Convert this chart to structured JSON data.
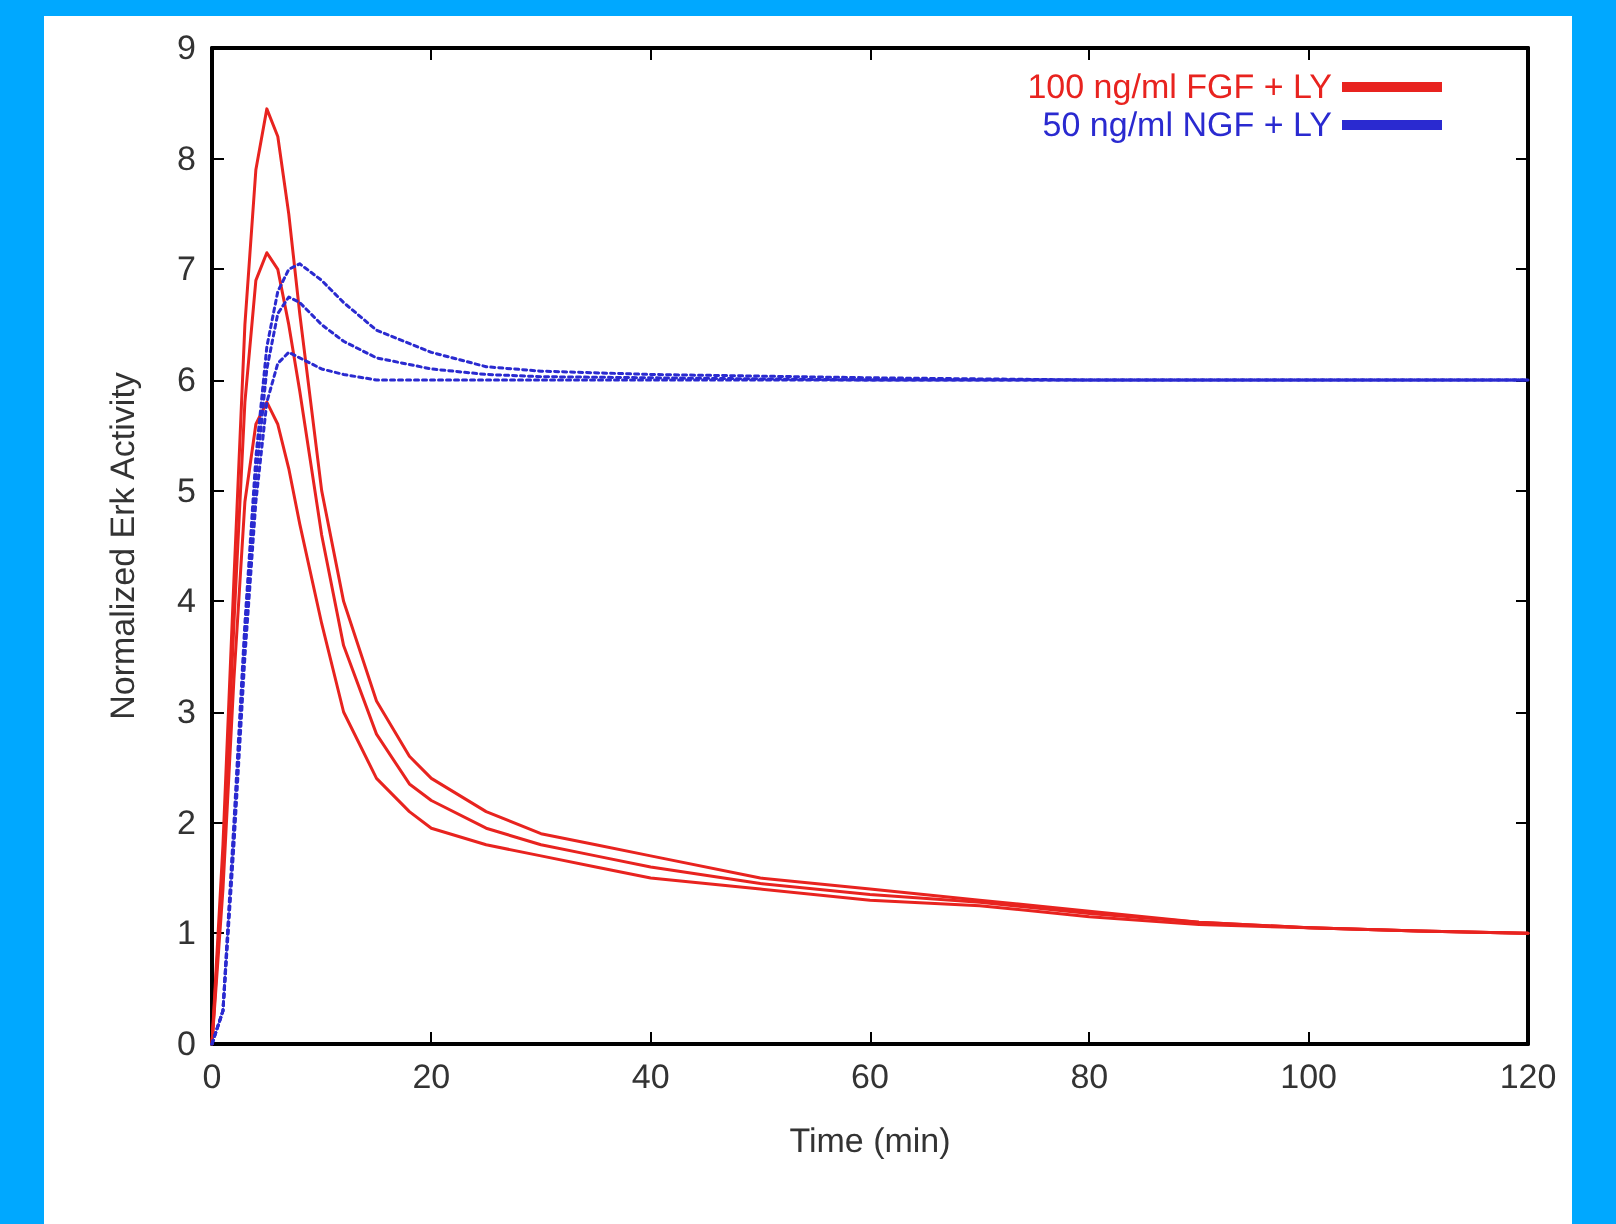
{
  "chart_data": {
    "type": "line",
    "xlabel": "Time (min)",
    "ylabel": "Normalized Erk Activity",
    "xlim": [
      0,
      120
    ],
    "xticks": [
      0,
      20,
      40,
      60,
      80,
      100,
      120
    ],
    "ylim": [
      0,
      9
    ],
    "yticks": [
      0,
      1,
      2,
      3,
      4,
      5,
      6,
      7,
      8,
      9
    ],
    "grid": false,
    "legend": "top right",
    "marker": "none",
    "series": [
      {
        "name": "100 ng/ml FGF + LY",
        "color": "#e8231f",
        "line_style": "solid",
        "x": [
          0,
          1,
          2,
          3,
          4,
          5,
          6,
          7,
          8,
          10,
          12,
          15,
          18,
          20,
          25,
          30,
          35,
          40,
          50,
          60,
          70,
          80,
          90,
          100,
          110,
          120
        ],
        "values": [
          0,
          1.8,
          4.2,
          6.5,
          7.9,
          8.45,
          8.2,
          7.5,
          6.6,
          5.0,
          4.0,
          3.1,
          2.6,
          2.4,
          2.1,
          1.9,
          1.8,
          1.7,
          1.5,
          1.4,
          1.3,
          1.2,
          1.1,
          1.05,
          1.02,
          1.0
        ]
      },
      {
        "color": "#e8231f",
        "line_style": "solid",
        "x": [
          0,
          1,
          2,
          3,
          4,
          5,
          6,
          7,
          8,
          10,
          12,
          15,
          18,
          20,
          25,
          30,
          35,
          40,
          50,
          60,
          70,
          80,
          90,
          100,
          110,
          120
        ],
        "values": [
          0,
          1.6,
          3.8,
          5.8,
          6.9,
          7.15,
          7.0,
          6.5,
          5.9,
          4.6,
          3.6,
          2.8,
          2.35,
          2.2,
          1.95,
          1.8,
          1.7,
          1.6,
          1.45,
          1.35,
          1.28,
          1.18,
          1.1,
          1.05,
          1.02,
          1.0
        ]
      },
      {
        "color": "#e8231f",
        "line_style": "solid",
        "x": [
          0,
          1,
          2,
          3,
          4,
          5,
          6,
          7,
          8,
          10,
          12,
          15,
          18,
          20,
          25,
          30,
          35,
          40,
          50,
          60,
          70,
          80,
          90,
          100,
          110,
          120
        ],
        "values": [
          0,
          1.4,
          3.3,
          4.9,
          5.6,
          5.8,
          5.6,
          5.2,
          4.7,
          3.8,
          3.0,
          2.4,
          2.1,
          1.95,
          1.8,
          1.7,
          1.6,
          1.5,
          1.4,
          1.3,
          1.25,
          1.15,
          1.08,
          1.05,
          1.02,
          1.0
        ]
      },
      {
        "name": "50 ng/ml NGF + LY",
        "color": "#2a2ad0",
        "line_style": "dotted",
        "x": [
          0,
          1,
          2,
          3,
          4,
          5,
          6,
          7,
          8,
          10,
          12,
          15,
          20,
          25,
          30,
          40,
          60,
          80,
          100,
          120
        ],
        "values": [
          0,
          0.3,
          2.0,
          3.8,
          5.3,
          6.3,
          6.8,
          7.0,
          7.05,
          6.9,
          6.7,
          6.45,
          6.25,
          6.12,
          6.08,
          6.05,
          6.02,
          6.0,
          6.0,
          6.0
        ]
      },
      {
        "color": "#2a2ad0",
        "line_style": "dotted",
        "x": [
          0,
          1,
          2,
          3,
          4,
          5,
          6,
          7,
          8,
          10,
          12,
          15,
          20,
          25,
          30,
          40,
          60,
          80,
          100,
          120
        ],
        "values": [
          0,
          0.3,
          1.9,
          3.7,
          5.1,
          6.1,
          6.6,
          6.75,
          6.7,
          6.5,
          6.35,
          6.2,
          6.1,
          6.05,
          6.03,
          6.02,
          6.0,
          6.0,
          6.0,
          6.0
        ]
      },
      {
        "color": "#2a2ad0",
        "line_style": "dotted",
        "x": [
          0,
          1,
          2,
          3,
          4,
          5,
          6,
          7,
          8,
          10,
          12,
          15,
          20,
          25,
          30,
          40,
          60,
          80,
          100,
          120
        ],
        "values": [
          0,
          0.3,
          1.8,
          3.5,
          4.9,
          5.8,
          6.15,
          6.25,
          6.2,
          6.1,
          6.05,
          6.0,
          6.0,
          6.0,
          6.0,
          6.0,
          6.0,
          6.0,
          6.0,
          6.0
        ]
      }
    ]
  }
}
